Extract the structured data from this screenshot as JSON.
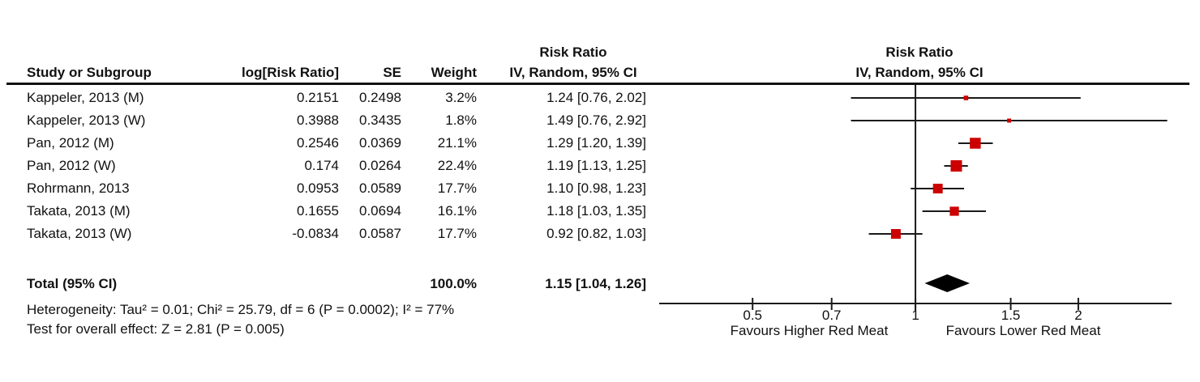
{
  "table": {
    "headers": {
      "study": "Study or Subgroup",
      "log_rr": "log[Risk Ratio]",
      "se": "SE",
      "weight": "Weight",
      "rr_line1": "Risk Ratio",
      "rr_line2": "IV, Random, 95% CI"
    },
    "rows": [
      {
        "study": "Kappeler, 2013 (M)",
        "log_rr": "0.2151",
        "se": "0.2498",
        "weight": "3.2%",
        "rr_ci": "1.24 [0.76, 2.02]"
      },
      {
        "study": "Kappeler, 2013 (W)",
        "log_rr": "0.3988",
        "se": "0.3435",
        "weight": "1.8%",
        "rr_ci": "1.49 [0.76, 2.92]"
      },
      {
        "study": "Pan, 2012 (M)",
        "log_rr": "0.2546",
        "se": "0.0369",
        "weight": "21.1%",
        "rr_ci": "1.29 [1.20, 1.39]"
      },
      {
        "study": "Pan, 2012 (W)",
        "log_rr": "0.174",
        "se": "0.0264",
        "weight": "22.4%",
        "rr_ci": "1.19 [1.13, 1.25]"
      },
      {
        "study": "Rohrmann, 2013",
        "log_rr": "0.0953",
        "se": "0.0589",
        "weight": "17.7%",
        "rr_ci": "1.10 [0.98, 1.23]"
      },
      {
        "study": "Takata, 2013 (M)",
        "log_rr": "0.1655",
        "se": "0.0694",
        "weight": "16.1%",
        "rr_ci": "1.18 [1.03, 1.35]"
      },
      {
        "study": "Takata, 2013 (W)",
        "log_rr": "-0.0834",
        "se": "0.0587",
        "weight": "17.7%",
        "rr_ci": "0.92 [0.82, 1.03]"
      }
    ],
    "total": {
      "label": "Total (95% CI)",
      "weight": "100.0%",
      "rr_ci": "1.15 [1.04, 1.26]"
    }
  },
  "plot_header": {
    "line1": "Risk Ratio",
    "line2": "IV, Random, 95% CI"
  },
  "footer": {
    "heterogeneity": "Heterogeneity: Tau² = 0.01; Chi² = 25.79, df = 6 (P = 0.0002); I² = 77%",
    "overall_effect": "Test for overall effect: Z = 2.81 (P = 0.005)"
  },
  "chart_data": {
    "type": "forest",
    "x_scale": "log",
    "axis": {
      "min": 0.336,
      "max": 2.975,
      "null_line": 1,
      "tick_labels": [
        "0.5",
        "0.7",
        "1",
        "1.5",
        "2"
      ],
      "tick_values": [
        0.5,
        0.7,
        1,
        1.5,
        2
      ]
    },
    "x_labels": {
      "left": "Favours Higher Red Meat",
      "right": "Favours Lower Red Meat"
    },
    "studies": [
      {
        "name": "Kappeler, 2013 (M)",
        "rr": 1.24,
        "ci_low": 0.76,
        "ci_high": 2.02,
        "weight_pct": 3.2
      },
      {
        "name": "Kappeler, 2013 (W)",
        "rr": 1.49,
        "ci_low": 0.76,
        "ci_high": 2.92,
        "weight_pct": 1.8
      },
      {
        "name": "Pan, 2012 (M)",
        "rr": 1.29,
        "ci_low": 1.2,
        "ci_high": 1.39,
        "weight_pct": 21.1
      },
      {
        "name": "Pan, 2012 (W)",
        "rr": 1.19,
        "ci_low": 1.13,
        "ci_high": 1.25,
        "weight_pct": 22.4
      },
      {
        "name": "Rohrmann, 2013",
        "rr": 1.1,
        "ci_low": 0.98,
        "ci_high": 1.23,
        "weight_pct": 17.7
      },
      {
        "name": "Takata, 2013 (M)",
        "rr": 1.18,
        "ci_low": 1.03,
        "ci_high": 1.35,
        "weight_pct": 16.1
      },
      {
        "name": "Takata, 2013 (W)",
        "rr": 0.92,
        "ci_low": 0.82,
        "ci_high": 1.03,
        "weight_pct": 17.7
      }
    ],
    "total": {
      "rr": 1.15,
      "ci_low": 1.04,
      "ci_high": 1.26
    },
    "colors": {
      "marker": "#CC0000",
      "diamond": "#000000",
      "line": "#1A1A1A"
    }
  }
}
